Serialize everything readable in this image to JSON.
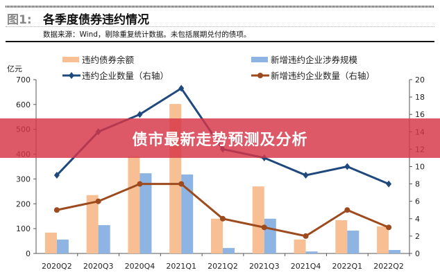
{
  "header": {
    "figure_label": "图1:",
    "title": "各季度债券违约情况",
    "source": "数据来源：Wind，剔除重复统计数据。未包括展期兑付的债项。"
  },
  "banner": {
    "text": "债市最新走势预测及分析",
    "color": "#d63446"
  },
  "chart_data": {
    "type": "bar",
    "categories": [
      "2020Q2",
      "2020Q3",
      "2020Q4",
      "2021Q1",
      "2021Q2",
      "2021Q3",
      "2021Q4",
      "2022Q1",
      "2022Q2"
    ],
    "ylabel": "亿元",
    "ylim": [
      0,
      700
    ],
    "yticks": [
      "0",
      "100",
      "200",
      "300",
      "400",
      "500",
      "600",
      "700"
    ],
    "y2lim": [
      0,
      20
    ],
    "y2ticks": [
      "0",
      "2",
      "4",
      "6",
      "8",
      "10",
      "12",
      "14",
      "16",
      "18",
      "20"
    ],
    "legend_position": "top",
    "grid": false,
    "series": [
      {
        "name": "违约债券余额",
        "type": "bar",
        "axis": "left",
        "color": "#f7bf93",
        "values": [
          84,
          235,
          390,
          602,
          140,
          270,
          56,
          134,
          109
        ]
      },
      {
        "name": "新增违约企业涉券规模",
        "type": "bar",
        "axis": "left",
        "color": "#8db4e2",
        "values": [
          56,
          114,
          323,
          318,
          22,
          140,
          8,
          92,
          14
        ]
      },
      {
        "name": "违约企业数量（右轴）",
        "type": "line",
        "axis": "right",
        "color": "#1f497d",
        "marker": "diamond",
        "values": [
          9,
          14,
          16,
          19,
          12,
          11,
          9,
          10,
          8
        ]
      },
      {
        "name": "新增违约企业数量（右轴）",
        "type": "line",
        "axis": "right",
        "color": "#9c4a1e",
        "marker": "circle",
        "values": [
          5,
          6,
          8,
          8,
          4,
          3,
          2,
          5,
          3
        ]
      }
    ]
  }
}
